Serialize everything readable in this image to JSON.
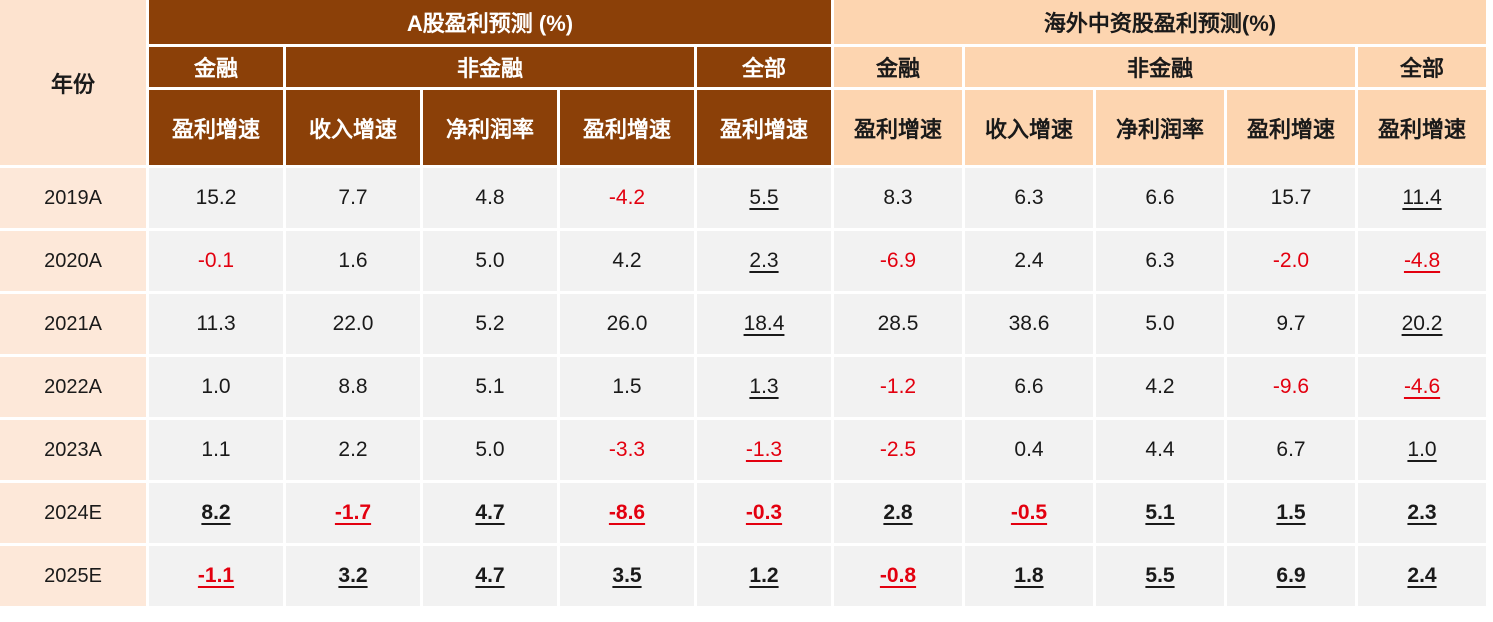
{
  "header": {
    "year_label": "年份",
    "a_share_title": "A股盈利预测 (%)",
    "overseas_title": "海外中资股盈利预测(%)",
    "a_share_groups": [
      "金融",
      "非金融",
      "全部"
    ],
    "overseas_groups": [
      "金融",
      "非金融",
      "全部"
    ],
    "metrics": [
      "盈利增速",
      "收入增速",
      "净利润率",
      "盈利增速",
      "盈利增速",
      "盈利增速",
      "收入增速",
      "净利润率",
      "盈利增速",
      "盈利增速"
    ]
  },
  "rows": [
    {
      "year": "2019A",
      "values": [
        "15.2",
        "7.7",
        "4.8",
        "-4.2",
        "5.5",
        "8.3",
        "6.3",
        "6.6",
        "15.7",
        "11.4"
      ]
    },
    {
      "year": "2020A",
      "values": [
        "-0.1",
        "1.6",
        "5.0",
        "4.2",
        "2.3",
        "-6.9",
        "2.4",
        "6.3",
        "-2.0",
        "-4.8"
      ]
    },
    {
      "year": "2021A",
      "values": [
        "11.3",
        "22.0",
        "5.2",
        "26.0",
        "18.4",
        "28.5",
        "38.6",
        "5.0",
        "9.7",
        "20.2"
      ]
    },
    {
      "year": "2022A",
      "values": [
        "1.0",
        "8.8",
        "5.1",
        "1.5",
        "1.3",
        "-1.2",
        "6.6",
        "4.2",
        "-9.6",
        "-4.6"
      ]
    },
    {
      "year": "2023A",
      "values": [
        "1.1",
        "2.2",
        "5.0",
        "-3.3",
        "-1.3",
        "-2.5",
        "0.4",
        "4.4",
        "6.7",
        "1.0"
      ]
    },
    {
      "year": "2024E",
      "values": [
        "8.2",
        "-1.7",
        "4.7",
        "-8.6",
        "-0.3",
        "2.8",
        "-0.5",
        "5.1",
        "1.5",
        "2.3"
      ]
    },
    {
      "year": "2025E",
      "values": [
        "-1.1",
        "3.2",
        "4.7",
        "3.5",
        "1.2",
        "-0.8",
        "1.8",
        "5.5",
        "6.9",
        "2.4"
      ]
    }
  ],
  "colors": {
    "a_share_header_bg": "#8b4008",
    "overseas_header_bg": "#fdd5b0",
    "year_column_bg": "#fde8d9",
    "value_bg": "#f2f2f2",
    "negative_text": "#e3000f"
  }
}
